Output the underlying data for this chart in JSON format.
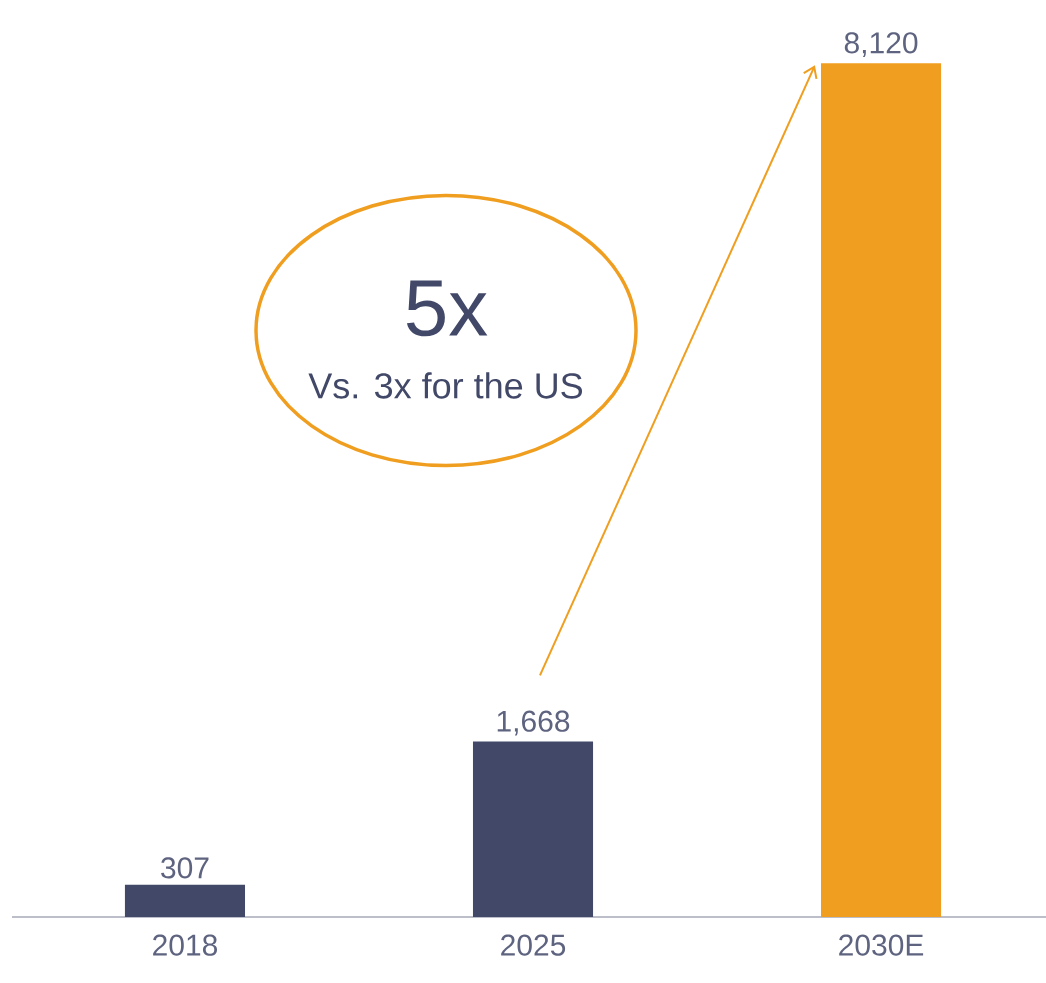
{
  "chart_data": {
    "type": "bar",
    "categories": [
      "2018",
      "2025",
      "2030E"
    ],
    "values": [
      307,
      1668,
      8120
    ],
    "colors": [
      "#424868",
      "#424868",
      "#f09e1f"
    ],
    "value_labels": [
      "307",
      "1,668",
      "8,120"
    ],
    "annotations": [
      "5x",
      "Vs. 3x for the US"
    ]
  }
}
